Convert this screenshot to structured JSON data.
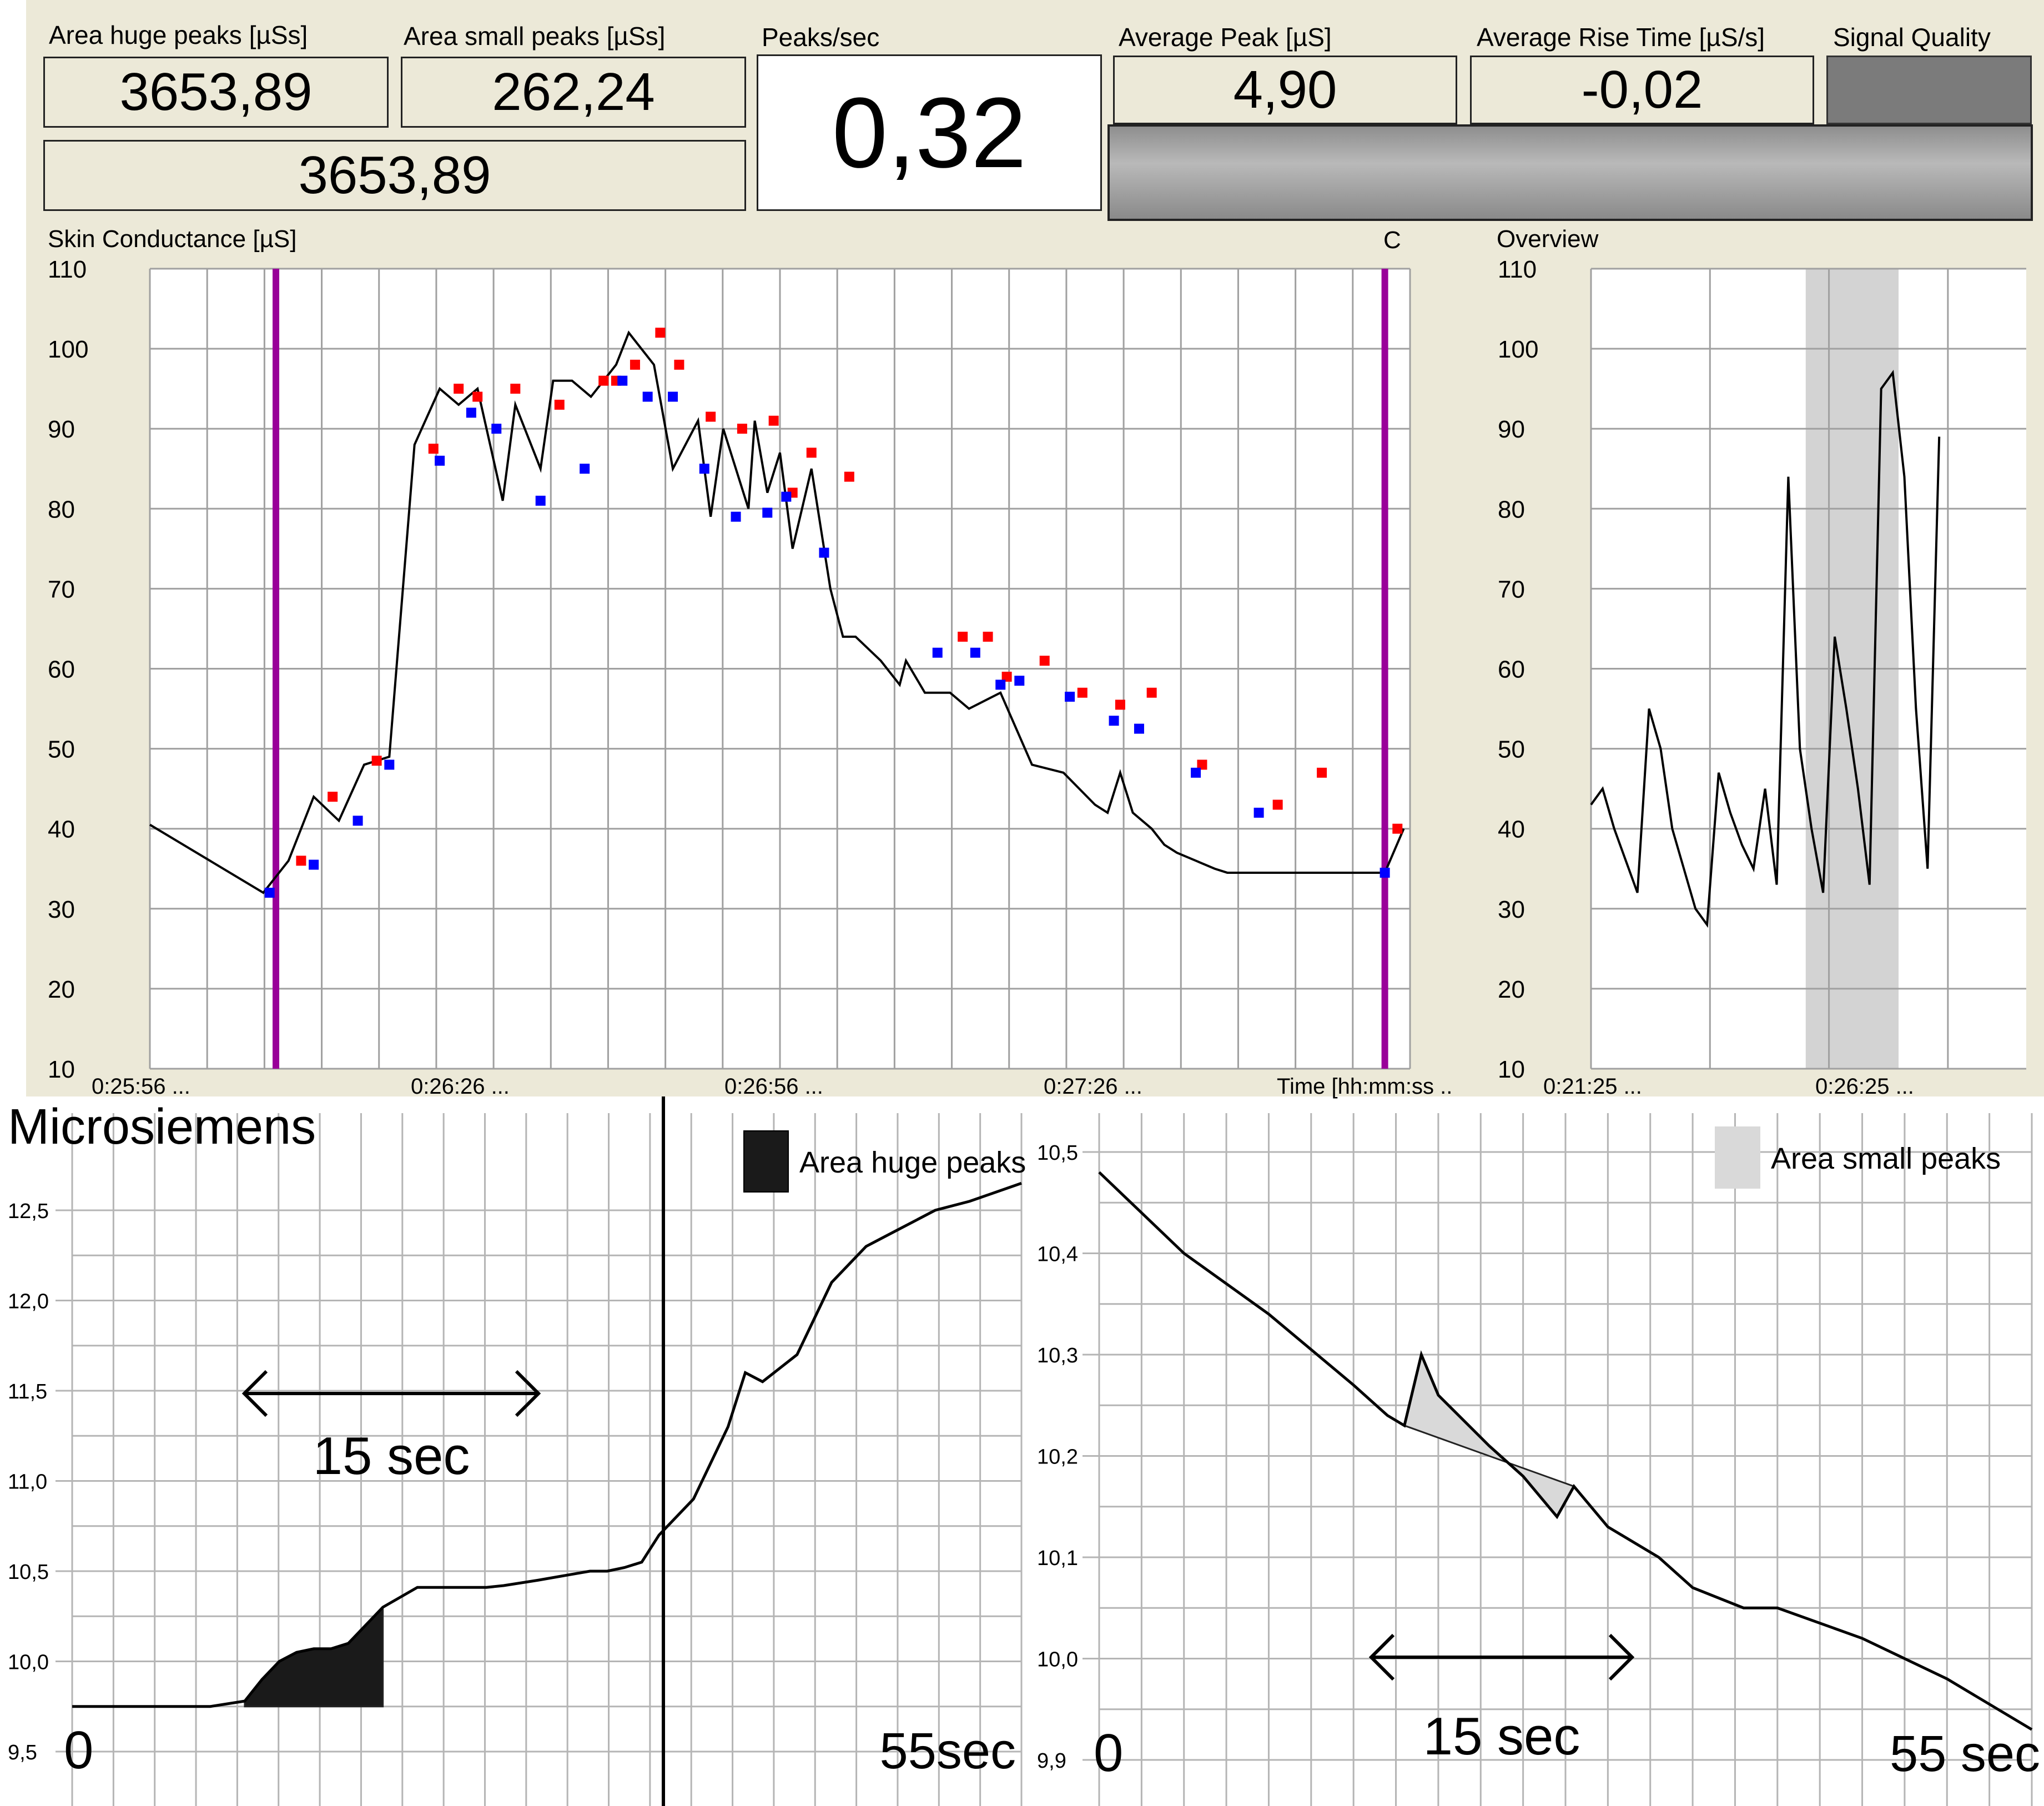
{
  "metrics": {
    "area_huge_peaks": {
      "title": "Area huge peaks [µSs]",
      "value": "3653,89"
    },
    "area_small_peaks": {
      "title": "Area small peaks  [µSs]",
      "value": "262,24"
    },
    "total_area": {
      "value": "3653,89"
    },
    "peaks_per_sec": {
      "title": "Peaks/sec",
      "value": "0,32"
    },
    "average_peak": {
      "title": "Average Peak  [µS]",
      "value": "4,90"
    },
    "average_rise_time": {
      "title": "Average Rise Time [µS/s]",
      "value": "-0,02"
    },
    "signal_quality": {
      "title": "Signal Quality",
      "color": "#7b7b7b"
    }
  },
  "colors": {
    "panel_bg": "#ece9d8",
    "cursor_line": "#990099",
    "peak_marker": "#ff0000",
    "valley_marker": "#0000ff",
    "highlight_window": "#d3d3d3"
  },
  "chart_data": [
    {
      "type": "line",
      "title": "Skin Conductance [µS]",
      "cursor_label": "C",
      "ylim": [
        10,
        110
      ],
      "y_ticks": [
        "10",
        "20",
        "30",
        "40",
        "50",
        "60",
        "70",
        "80",
        "90",
        "100",
        "110"
      ],
      "x_tick_labels": [
        "0:25:56 ...",
        "0:26:26 ...",
        "0:26:56 ...",
        "0:27:26 ...",
        "Time [hh:mm:ss ...]"
      ],
      "cursors_x": [
        2,
        19.6
      ],
      "series": [
        {
          "x": [
            0,
            1.8,
            2.2,
            2.6,
            3.0,
            3.4,
            3.8,
            4.2,
            4.6,
            4.9,
            5.2,
            5.6,
            5.8,
            6.2,
            6.4,
            6.7,
            7.0,
            7.4,
            7.6,
            8.0,
            8.3,
            8.7,
            8.9,
            9.1,
            9.5,
            9.6,
            9.8,
            10.0,
            10.2,
            10.5,
            10.8,
            11.0,
            11.2,
            11.6,
            11.9,
            12.0,
            12.3,
            12.7,
            13.0,
            13.5,
            14.0,
            14.5,
            15.0,
            15.2,
            15.4,
            15.6,
            15.9,
            16.1,
            16.3,
            16.6,
            16.9,
            17.1,
            17.3,
            17.6,
            17.9,
            18.2,
            18.6,
            18.9,
            19.2,
            19.6,
            19.9
          ],
          "y": [
            40.5,
            32,
            36,
            44,
            41,
            48,
            49,
            88,
            95,
            93,
            95,
            81,
            93,
            85,
            96,
            96,
            94,
            98,
            102,
            98,
            85,
            91,
            79,
            90,
            80,
            91,
            82,
            87,
            75,
            85,
            70,
            64,
            64,
            61,
            58,
            61,
            57,
            57,
            55,
            57,
            48,
            47,
            43,
            42,
            47,
            42,
            40,
            38,
            37,
            36,
            35,
            34.5,
            34.5,
            34.5,
            34.5,
            34.5,
            34.5,
            34.5,
            34.5,
            34.5,
            40
          ]
        }
      ],
      "peaks_red": [
        [
          2.4,
          36
        ],
        [
          2.9,
          44
        ],
        [
          3.6,
          48.5
        ],
        [
          4.5,
          87.5
        ],
        [
          4.9,
          95
        ],
        [
          5.2,
          94
        ],
        [
          5.8,
          95
        ],
        [
          6.5,
          93
        ],
        [
          7.2,
          96
        ],
        [
          7.4,
          96
        ],
        [
          7.7,
          98
        ],
        [
          8.1,
          102
        ],
        [
          8.4,
          98
        ],
        [
          8.9,
          91.5
        ],
        [
          9.4,
          90
        ],
        [
          9.9,
          91
        ],
        [
          10.2,
          82
        ],
        [
          10.5,
          87
        ],
        [
          11.1,
          84
        ],
        [
          12.9,
          64
        ],
        [
          13.3,
          64
        ],
        [
          13.6,
          59
        ],
        [
          14.2,
          61
        ],
        [
          14.8,
          57
        ],
        [
          15.4,
          55.5
        ],
        [
          15.9,
          57
        ],
        [
          16.7,
          48
        ],
        [
          17.9,
          43
        ],
        [
          18.6,
          47
        ],
        [
          19.8,
          40
        ]
      ],
      "valleys_blue": [
        [
          1.9,
          32
        ],
        [
          2.6,
          35.5
        ],
        [
          3.3,
          41
        ],
        [
          3.8,
          48
        ],
        [
          4.6,
          86
        ],
        [
          5.1,
          92
        ],
        [
          5.5,
          90
        ],
        [
          6.2,
          81
        ],
        [
          6.9,
          85
        ],
        [
          7.5,
          96
        ],
        [
          7.9,
          94
        ],
        [
          8.3,
          94
        ],
        [
          8.8,
          85
        ],
        [
          9.3,
          79
        ],
        [
          9.8,
          79.5
        ],
        [
          10.1,
          81.5
        ],
        [
          10.7,
          74.5
        ],
        [
          12.5,
          62
        ],
        [
          13.1,
          62
        ],
        [
          13.5,
          58
        ],
        [
          13.8,
          58.5
        ],
        [
          14.6,
          56.5
        ],
        [
          15.3,
          53.5
        ],
        [
          15.7,
          52.5
        ],
        [
          16.6,
          47
        ],
        [
          17.6,
          42
        ],
        [
          19.6,
          34.5
        ]
      ]
    },
    {
      "type": "line",
      "title": "Overview",
      "ylim": [
        10,
        110
      ],
      "y_ticks": [
        "10",
        "20",
        "30",
        "40",
        "50",
        "60",
        "70",
        "80",
        "90",
        "100",
        "110"
      ],
      "x_tick_labels": [
        "0:21:25 ...",
        "0:26:25 ..."
      ],
      "highlight_x": [
        3.7,
        5.3
      ],
      "series": [
        {
          "x": [
            0,
            0.2,
            0.4,
            0.6,
            0.8,
            1.0,
            1.2,
            1.4,
            1.6,
            1.8,
            2.0,
            2.2,
            2.4,
            2.6,
            2.8,
            3.0,
            3.2,
            3.4,
            3.6,
            3.8,
            4.0,
            4.2,
            4.4,
            4.6,
            4.8,
            5.0,
            5.2,
            5.4,
            5.6,
            5.8,
            6.0
          ],
          "y": [
            43,
            45,
            40,
            36,
            32,
            55,
            50,
            40,
            35,
            30,
            28,
            47,
            42,
            38,
            35,
            45,
            33,
            84,
            50,
            40,
            32,
            64,
            55,
            45,
            33,
            95,
            97,
            84,
            55,
            35,
            89
          ]
        }
      ]
    },
    {
      "type": "area",
      "title": "Microsiemens",
      "legend": "Area huge peaks",
      "ylim": [
        9.5,
        12.5
      ],
      "y_ticks": [
        "9,5",
        "10,0",
        "10,5",
        "11,0",
        "11,5",
        "12,0",
        "12,5"
      ],
      "x_start_label": "0",
      "x_end_label": "55sec",
      "interval_label": "15 sec",
      "series": [
        {
          "x": [
            0,
            4,
            8,
            10,
            11,
            12,
            13,
            14,
            15,
            16,
            17,
            18,
            20,
            24,
            25,
            27,
            30,
            31,
            32,
            33,
            34,
            35,
            36,
            37,
            38,
            39,
            40,
            42,
            43,
            44,
            45,
            46,
            47,
            48,
            49,
            50,
            52,
            55
          ],
          "y": [
            9.75,
            9.75,
            9.75,
            9.78,
            9.9,
            10.0,
            10.05,
            10.07,
            10.07,
            10.1,
            10.2,
            10.3,
            10.41,
            10.41,
            10.42,
            10.45,
            10.5,
            10.5,
            10.52,
            10.55,
            10.7,
            10.8,
            10.9,
            11.1,
            11.3,
            11.6,
            11.55,
            11.7,
            11.9,
            12.1,
            12.2,
            12.3,
            12.35,
            12.4,
            12.45,
            12.5,
            12.55,
            12.65
          ]
        }
      ],
      "shaded_x": [
        10,
        18
      ]
    },
    {
      "type": "area",
      "legend": "Area small peaks",
      "ylim": [
        9.9,
        10.5
      ],
      "y_ticks": [
        "9,9",
        "10,0",
        "10,1",
        "10,2",
        "10,3",
        "10,4",
        "10,5"
      ],
      "x_start_label": "0",
      "x_end_label": "55 sec",
      "interval_label": "15 sec",
      "series": [
        {
          "x": [
            0,
            5,
            10,
            15,
            17,
            18,
            19,
            20,
            23,
            25,
            27,
            28,
            30,
            33,
            35,
            38,
            40,
            45,
            50,
            55
          ],
          "y": [
            10.48,
            10.4,
            10.34,
            10.27,
            10.24,
            10.23,
            10.3,
            10.26,
            10.21,
            10.18,
            10.14,
            10.17,
            10.13,
            10.1,
            10.07,
            10.05,
            10.05,
            10.02,
            9.98,
            9.93
          ]
        }
      ],
      "shaded_x": [
        18,
        28
      ]
    }
  ]
}
